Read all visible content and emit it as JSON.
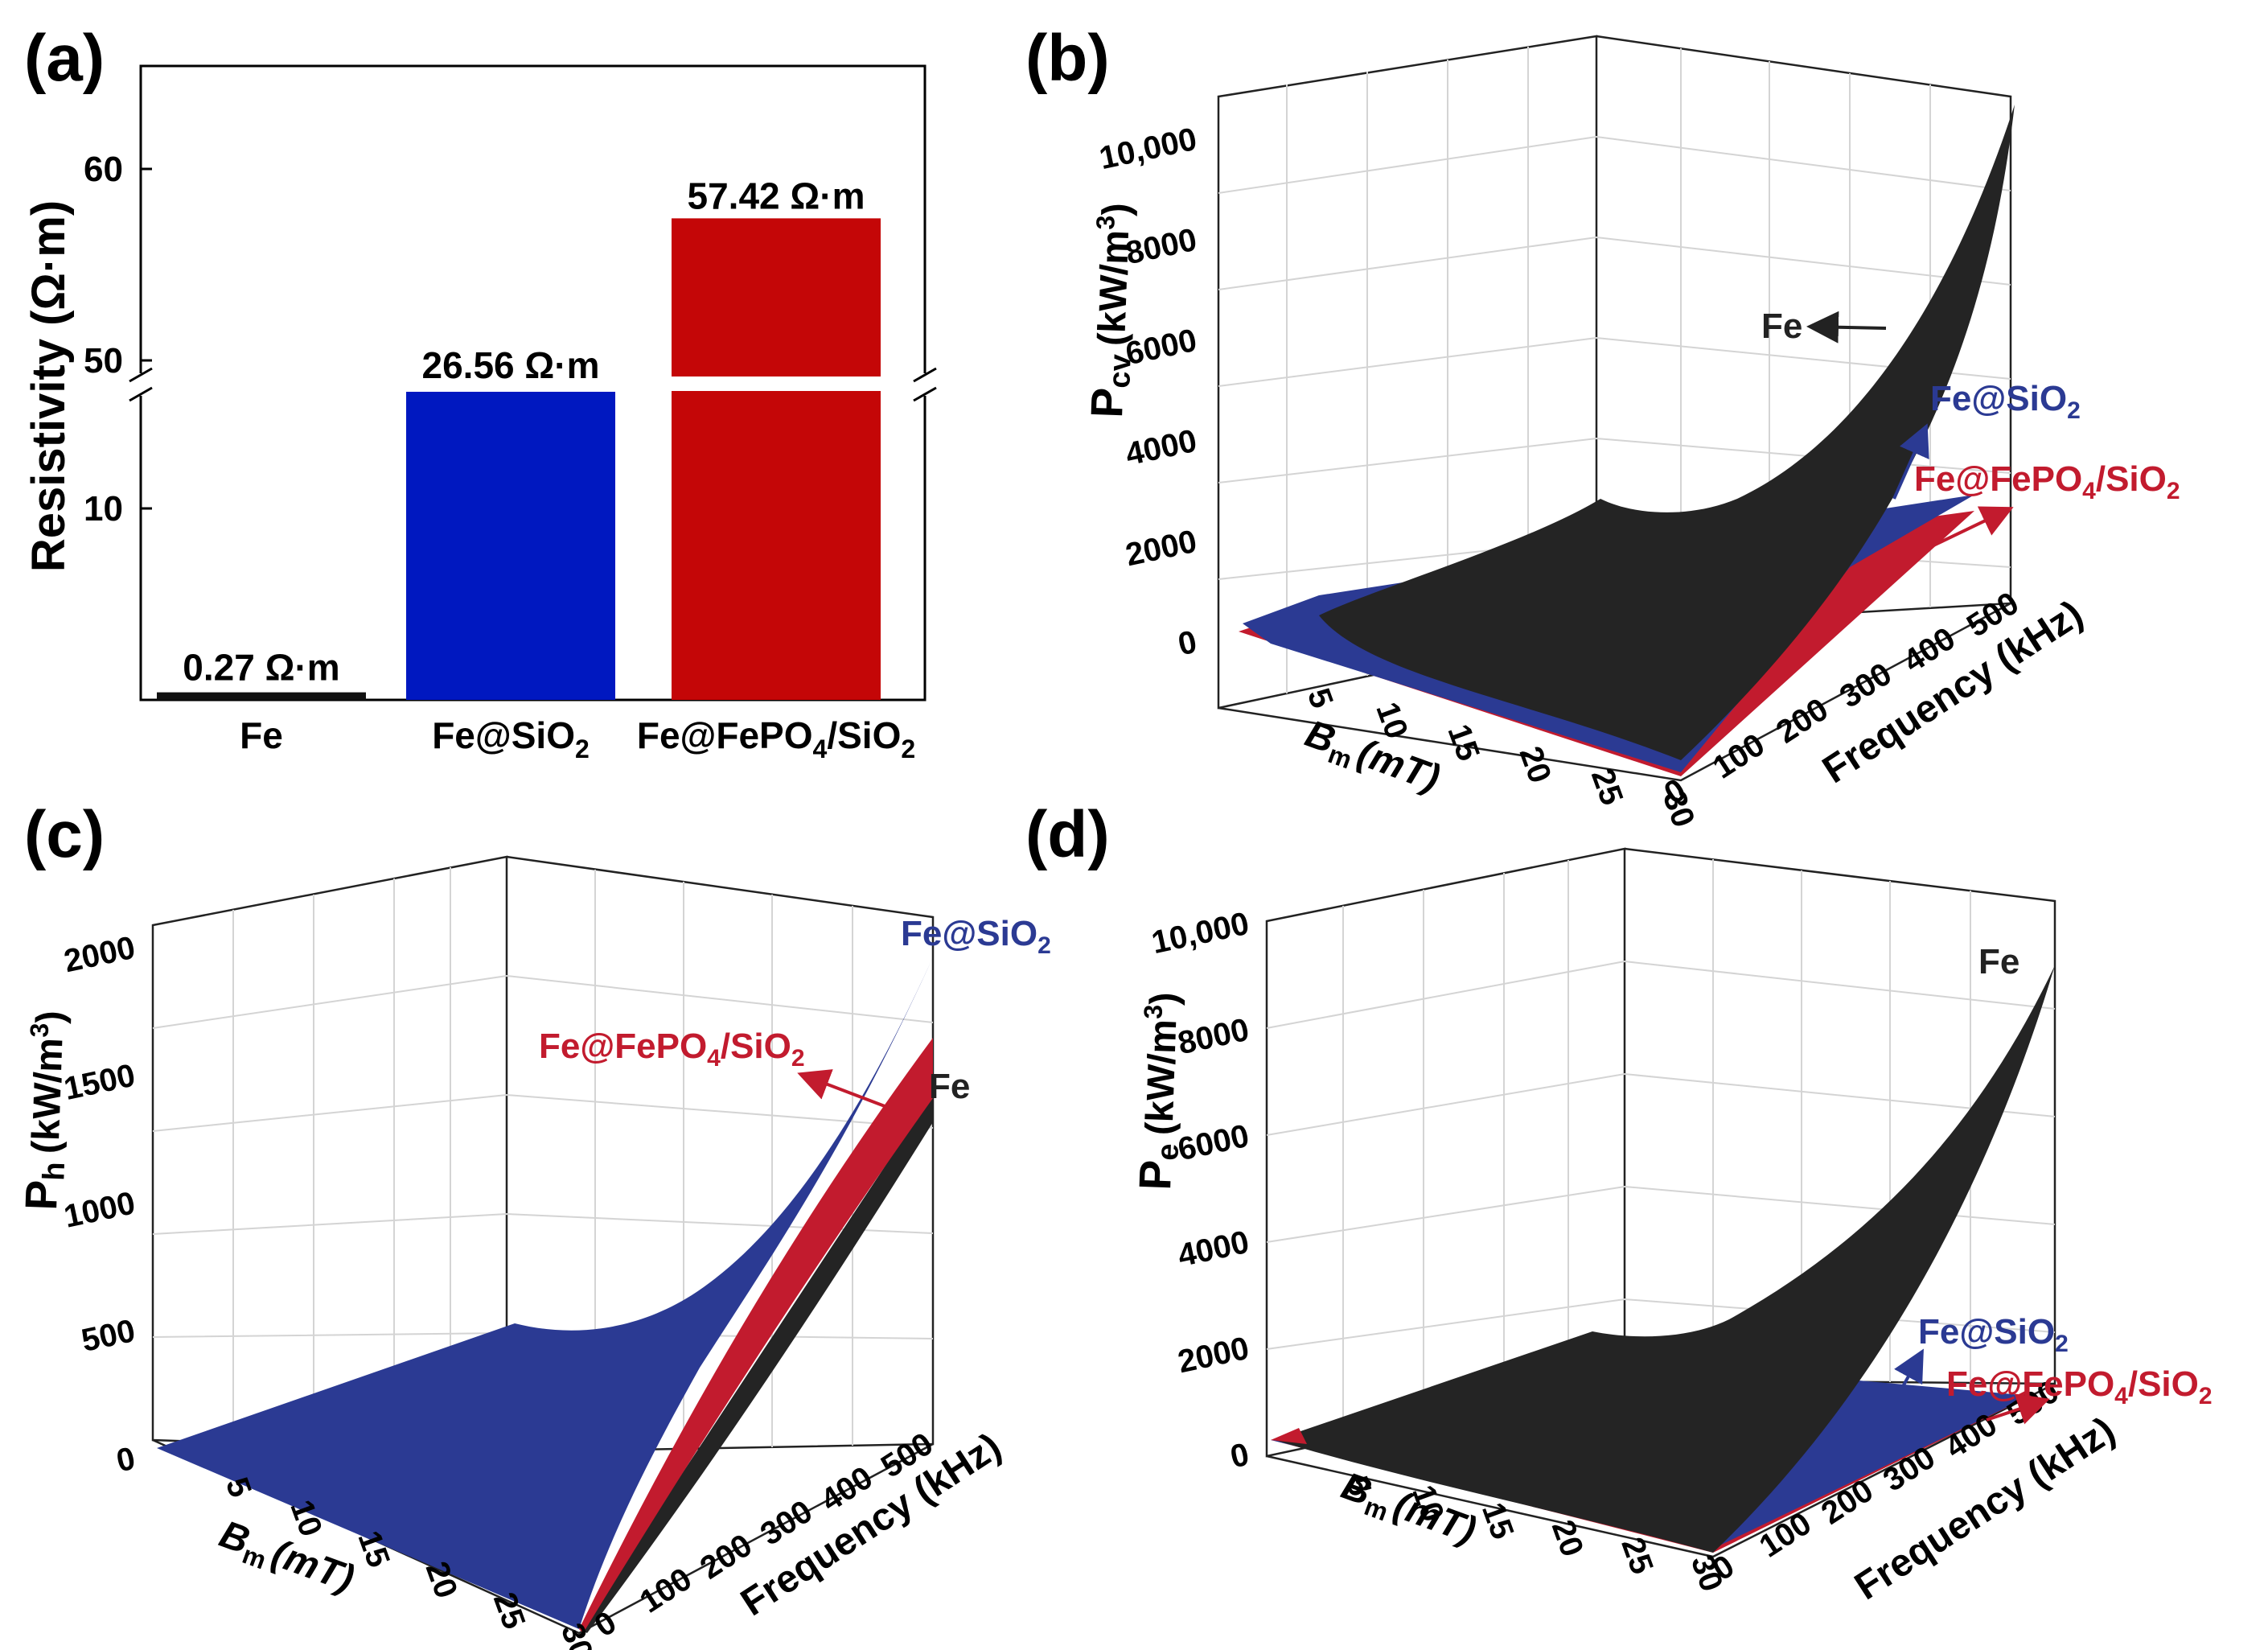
{
  "chart_data": [
    {
      "panel": "(a)",
      "type": "bar",
      "ylabel": "Resistivity (Ω·m)",
      "axis_break": [
        12,
        48.5
      ],
      "lower_ticks": [
        "10"
      ],
      "upper_ticks": [
        "50",
        "60"
      ],
      "categories": [
        {
          "name": "Fe",
          "sub": "",
          "tail": ""
        },
        {
          "name": "Fe@SiO",
          "sub": "2",
          "tail": ""
        },
        {
          "name": "Fe@FePO",
          "sub": "4",
          "tail": "/SiO",
          "sub2": "2"
        }
      ],
      "values": [
        0.27,
        26.56,
        57.42
      ],
      "value_labels": [
        "0.27 Ω·m",
        "26.56 Ω·m",
        "57.42 Ω·m"
      ],
      "colors": [
        "#111111",
        "#0018c0",
        "#c40607"
      ]
    },
    {
      "panel": "(b)",
      "type": "surface",
      "zlabel_main": "P",
      "zlabel_sub": "cv",
      "zlabel_unit": "(kW/m",
      "zlabel_sup": "3",
      "zlabel_close": ")",
      "xlabel_main": "B",
      "xlabel_sub": "m",
      "xlabel_unit": "(mT)",
      "ylabel": "Frequency (kHz)",
      "x_ticks": [
        "5",
        "10",
        "15",
        "20",
        "25",
        "30"
      ],
      "y_ticks": [
        "0",
        "100",
        "200",
        "300",
        "400",
        "500"
      ],
      "z_ticks": [
        "0",
        "2000",
        "4000",
        "6000",
        "8000",
        "10,000"
      ],
      "z_range": [
        0,
        10000
      ],
      "surfaces": [
        {
          "name": "Fe",
          "max_value": 10500,
          "color": "#242424"
        },
        {
          "name": "Fe@SiO2",
          "max_value": 2800,
          "color": "#2b3a93"
        },
        {
          "name": "Fe@FePO4/SiO2",
          "max_value": 2600,
          "color": "#c21b2e"
        }
      ],
      "annotations": [
        "Fe",
        "Fe@SiO",
        "Fe@FePO"
      ]
    },
    {
      "panel": "(c)",
      "type": "surface",
      "zlabel_main": "P",
      "zlabel_sub": "h",
      "zlabel_unit": "(kW/m",
      "zlabel_sup": "3",
      "zlabel_close": ")",
      "xlabel_main": "B",
      "xlabel_sub": "m",
      "xlabel_unit": "(mT)",
      "ylabel": "Frequency (kHz)",
      "x_ticks": [
        "5",
        "10",
        "15",
        "20",
        "25",
        "30"
      ],
      "y_ticks": [
        "0",
        "100",
        "200",
        "300",
        "400",
        "500"
      ],
      "z_ticks": [
        "0",
        "500",
        "1000",
        "1500",
        "2000"
      ],
      "z_range": [
        0,
        2000
      ],
      "surfaces": [
        {
          "name": "Fe@SiO2",
          "max_value": 1980,
          "color": "#2b3a93"
        },
        {
          "name": "Fe@FePO4/SiO2",
          "max_value": 1620,
          "color": "#c21b2e"
        },
        {
          "name": "Fe",
          "max_value": 1450,
          "color": "#242424"
        }
      ],
      "annotations": [
        "Fe@SiO",
        "Fe@FePO",
        "Fe"
      ]
    },
    {
      "panel": "(d)",
      "type": "surface",
      "zlabel_main": "P",
      "zlabel_sub": "e",
      "zlabel_unit": "(kW/m",
      "zlabel_sup": "3",
      "zlabel_close": ")",
      "xlabel_main": "B",
      "xlabel_sub": "m",
      "xlabel_unit": "(mT)",
      "ylabel": "Frequency (kHz)",
      "x_ticks": [
        "5",
        "10",
        "15",
        "20",
        "25",
        "30"
      ],
      "y_ticks": [
        "0",
        "100",
        "200",
        "300",
        "400",
        "500"
      ],
      "z_ticks": [
        "0",
        "2000",
        "4000",
        "6000",
        "8000",
        "10,000"
      ],
      "z_range": [
        0,
        10000
      ],
      "surfaces": [
        {
          "name": "Fe",
          "max_value": 9000,
          "color": "#242424"
        },
        {
          "name": "Fe@SiO2",
          "max_value": 750,
          "color": "#2b3a93"
        },
        {
          "name": "Fe@FePO4/SiO2",
          "max_value": 700,
          "color": "#c21b2e"
        }
      ],
      "annotations": [
        "Fe",
        "Fe@SiO",
        "Fe@FePO"
      ]
    }
  ],
  "labels": {
    "a": "(a)",
    "b": "(b)",
    "c": "(c)",
    "d": "(d)",
    "ann_sio2_sub": "2",
    "ann_fepo_sub4": "4",
    "ann_fepo_tail": "/SiO",
    "ann_fepo_sub2": "2"
  },
  "colors": {
    "fe": "#242424",
    "sio2": "#2b3a93",
    "fepo": "#c21b2e",
    "bar_fe": "#111111",
    "bar_sio2": "#0018c0",
    "bar_fepo": "#c40607",
    "ann_blue": "#2b3a93",
    "ann_red": "#c21b2e",
    "ann_dark": "#222222"
  }
}
